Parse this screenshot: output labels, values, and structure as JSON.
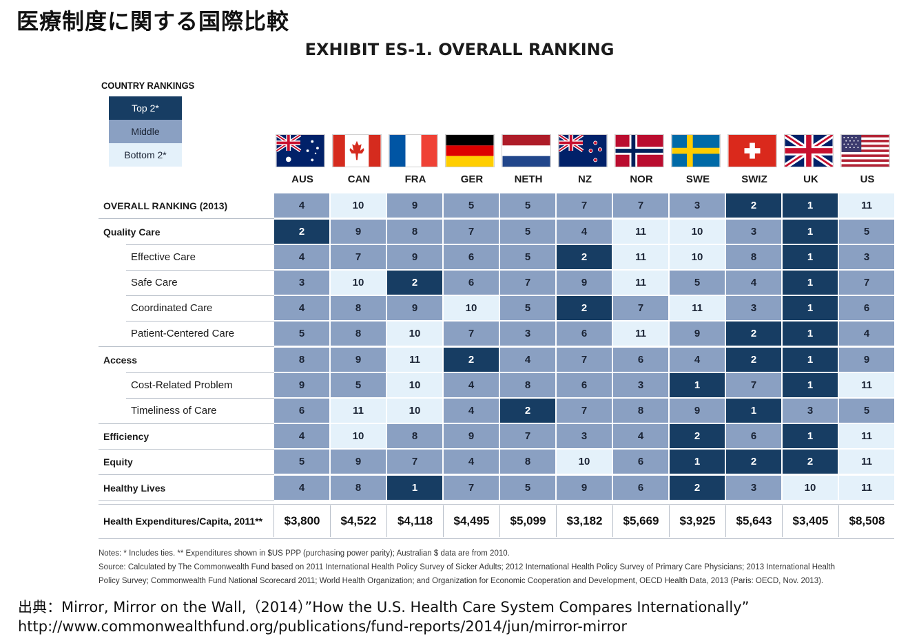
{
  "page_title": "医療制度に関する国際比較",
  "chart_data": {
    "type": "table",
    "title": "EXHIBIT ES-1. OVERALL RANKING",
    "legend": {
      "title": "COUNTRY RANKINGS",
      "entries": [
        {
          "label": "Top 2*",
          "tier": "top",
          "color": "#173d63"
        },
        {
          "label": "Middle",
          "tier": "mid",
          "color": "#8aa0c2"
        },
        {
          "label": "Bottom 2*",
          "tier": "bot",
          "color": "#e4f1fa"
        }
      ]
    },
    "countries": [
      "AUS",
      "CAN",
      "FRA",
      "GER",
      "NETH",
      "NZ",
      "NOR",
      "SWE",
      "SWIZ",
      "UK",
      "US"
    ],
    "flags": [
      "australia-flag",
      "canada-flag",
      "france-flag",
      "germany-flag",
      "netherlands-flag",
      "new-zealand-flag",
      "norway-flag",
      "sweden-flag",
      "switzerland-flag",
      "uk-flag",
      "us-flag"
    ],
    "rows": [
      {
        "label": "OVERALL RANKING (2013)",
        "style": "bold",
        "values": [
          4,
          10,
          9,
          5,
          5,
          7,
          7,
          3,
          2,
          1,
          11
        ],
        "tiers": [
          "mid",
          "bot",
          "mid",
          "mid",
          "mid",
          "mid",
          "mid",
          "mid",
          "top",
          "top",
          "bot"
        ]
      },
      {
        "label": "Quality Care",
        "style": "bold",
        "values": [
          2,
          9,
          8,
          7,
          5,
          4,
          11,
          10,
          3,
          1,
          5
        ],
        "tiers": [
          "top",
          "mid",
          "mid",
          "mid",
          "mid",
          "mid",
          "bot",
          "bot",
          "mid",
          "top",
          "mid"
        ]
      },
      {
        "label": "Effective Care",
        "style": "indent",
        "values": [
          4,
          7,
          9,
          6,
          5,
          2,
          11,
          10,
          8,
          1,
          3
        ],
        "tiers": [
          "mid",
          "mid",
          "mid",
          "mid",
          "mid",
          "top",
          "bot",
          "bot",
          "mid",
          "top",
          "mid"
        ]
      },
      {
        "label": "Safe Care",
        "style": "indent",
        "values": [
          3,
          10,
          2,
          6,
          7,
          9,
          11,
          5,
          4,
          1,
          7
        ],
        "tiers": [
          "mid",
          "bot",
          "top",
          "mid",
          "mid",
          "mid",
          "bot",
          "mid",
          "mid",
          "top",
          "mid"
        ]
      },
      {
        "label": "Coordinated Care",
        "style": "indent",
        "values": [
          4,
          8,
          9,
          10,
          5,
          2,
          7,
          11,
          3,
          1,
          6
        ],
        "tiers": [
          "mid",
          "mid",
          "mid",
          "bot",
          "mid",
          "top",
          "mid",
          "bot",
          "mid",
          "top",
          "mid"
        ]
      },
      {
        "label": "Patient-Centered Care",
        "style": "indent",
        "values": [
          5,
          8,
          10,
          7,
          3,
          6,
          11,
          9,
          2,
          1,
          4
        ],
        "tiers": [
          "mid",
          "mid",
          "bot",
          "mid",
          "mid",
          "mid",
          "bot",
          "mid",
          "top",
          "top",
          "mid"
        ]
      },
      {
        "label": "Access",
        "style": "bold",
        "values": [
          8,
          9,
          11,
          2,
          4,
          7,
          6,
          4,
          2,
          1,
          9
        ],
        "tiers": [
          "mid",
          "mid",
          "bot",
          "top",
          "mid",
          "mid",
          "mid",
          "mid",
          "top",
          "top",
          "mid"
        ]
      },
      {
        "label": "Cost-Related Problem",
        "style": "indent",
        "values": [
          9,
          5,
          10,
          4,
          8,
          6,
          3,
          1,
          7,
          1,
          11
        ],
        "tiers": [
          "mid",
          "mid",
          "bot",
          "mid",
          "mid",
          "mid",
          "mid",
          "top",
          "mid",
          "top",
          "bot"
        ]
      },
      {
        "label": "Timeliness of Care",
        "style": "indent",
        "values": [
          6,
          11,
          10,
          4,
          2,
          7,
          8,
          9,
          1,
          3,
          5
        ],
        "tiers": [
          "mid",
          "bot",
          "bot",
          "mid",
          "top",
          "mid",
          "mid",
          "mid",
          "top",
          "mid",
          "mid"
        ]
      },
      {
        "label": "Efficiency",
        "style": "bold",
        "values": [
          4,
          10,
          8,
          9,
          7,
          3,
          4,
          2,
          6,
          1,
          11
        ],
        "tiers": [
          "mid",
          "bot",
          "mid",
          "mid",
          "mid",
          "mid",
          "mid",
          "top",
          "mid",
          "top",
          "bot"
        ]
      },
      {
        "label": "Equity",
        "style": "bold",
        "values": [
          5,
          9,
          7,
          4,
          8,
          10,
          6,
          1,
          2,
          2,
          11
        ],
        "tiers": [
          "mid",
          "mid",
          "mid",
          "mid",
          "mid",
          "bot",
          "mid",
          "top",
          "top",
          "top",
          "bot"
        ]
      },
      {
        "label": "Healthy Lives",
        "style": "bold",
        "values": [
          4,
          8,
          1,
          7,
          5,
          9,
          6,
          2,
          3,
          10,
          11
        ],
        "tiers": [
          "mid",
          "mid",
          "top",
          "mid",
          "mid",
          "mid",
          "mid",
          "top",
          "mid",
          "bot",
          "bot"
        ]
      }
    ],
    "expenditures": {
      "label": "Health Expenditures/Capita, 2011**",
      "values": [
        "$3,800",
        "$4,522",
        "$4,118",
        "$4,495",
        "$5,099",
        "$3,182",
        "$5,669",
        "$3,925",
        "$5,643",
        "$3,405",
        "$8,508"
      ]
    },
    "notes": [
      "Notes: * Includes ties. ** Expenditures shown in $US PPP (purchasing power parity); Australian $ data are from 2010.",
      "Source: Calculated by The Commonwealth Fund based on 2011 International Health Policy Survey of Sicker Adults; 2012 International Health Policy Survey of Primary Care Physicians; 2013 International Health",
      "Policy Survey; Commonwealth Fund National Scorecard 2011; World Health Organization; and Organization for Economic Cooperation and Development, OECD Health Data, 2013 (Paris: OECD, Nov. 2013)."
    ]
  },
  "source_line1": "出典：Mirror, Mirror on the Wall,（2014）”How the U.S. Health Care System Compares Internationally”",
  "source_line2": "http://www.commonwealthfund.org/publications/fund-reports/2014/jun/mirror-mirror"
}
